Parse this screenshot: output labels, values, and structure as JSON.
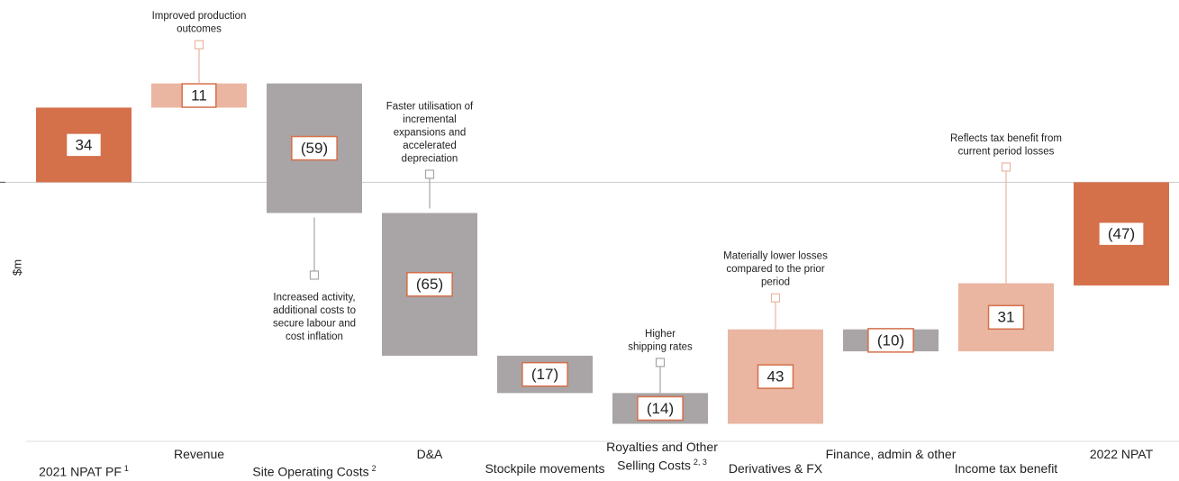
{
  "chart_data": {
    "type": "waterfall",
    "ylabel": "$m",
    "ylim": [
      -118,
      83
    ],
    "categories": [
      "2021 NPAT PF",
      "Revenue",
      "Site Operating Costs",
      "D&A",
      "Stockpile movements",
      "Royalties and Other Selling Costs",
      "Derivatives & FX",
      "Finance, admin & other",
      "Income tax benefit",
      "2022 NPAT"
    ],
    "footnotes": [
      "1",
      null,
      "2",
      null,
      null,
      "2, 3",
      null,
      null,
      null,
      null
    ],
    "values": [
      34,
      11,
      -59,
      -65,
      -17,
      -14,
      43,
      -10,
      31,
      -47
    ],
    "value_labels": [
      "34",
      "11",
      "(59)",
      "(65)",
      "(17)",
      "(14)",
      "43",
      "(10)",
      "31",
      "(47)"
    ],
    "kinds": [
      "total",
      "delta",
      "delta",
      "delta",
      "delta",
      "delta",
      "delta",
      "delta",
      "delta",
      "total"
    ],
    "colors": {
      "total": "#d4704a",
      "increase": "#eab5a1",
      "decrease": "#a9a4a5",
      "label_border": "#d4704a"
    },
    "annotations": [
      null,
      [
        "Improved production",
        "outcomes"
      ],
      [
        "Increased activity,",
        "additional costs to",
        "secure labour and",
        "cost inflation"
      ],
      [
        "Faster utilisation of",
        "incremental",
        "expansions and",
        "accelerated",
        "depreciation"
      ],
      null,
      [
        "Higher",
        "shipping rates"
      ],
      [
        "Materially lower losses",
        "compared to the prior",
        "period"
      ],
      null,
      [
        "Reflects tax benefit from",
        "current period losses"
      ],
      null
    ]
  }
}
